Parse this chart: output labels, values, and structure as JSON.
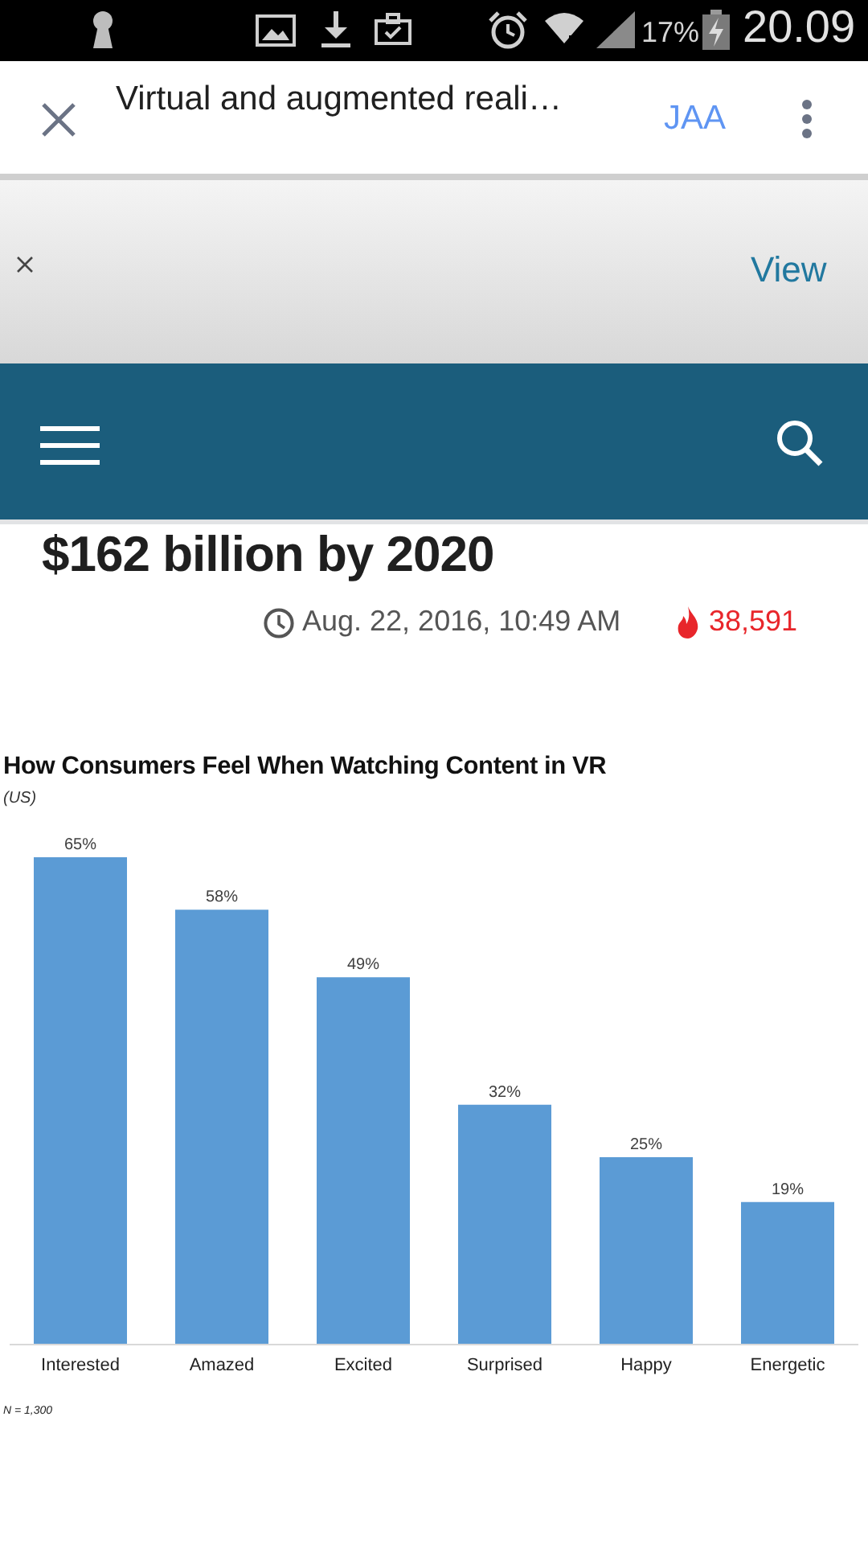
{
  "chart_data": {
    "type": "bar",
    "title": "How Consumers Feel When Watching Content in VR",
    "subtitle": "(US)",
    "categories": [
      "Interested",
      "Amazed",
      "Excited",
      "Surprised",
      "Happy",
      "Energetic"
    ],
    "values": [
      65,
      58,
      49,
      32,
      25,
      19
    ],
    "value_labels": [
      "65%",
      "58%",
      "49%",
      "32%",
      "25%",
      "19%"
    ],
    "color": "#5b9bd5",
    "annotations": [
      "17%",
      "20.09",
      "Virtual and augmented reali…",
      "JAA",
      "View",
      "$162 billion by 2020",
      "Aug. 22, 2016, 10:49 AM",
      "38,591",
      "N = 1,300"
    ]
  }
}
